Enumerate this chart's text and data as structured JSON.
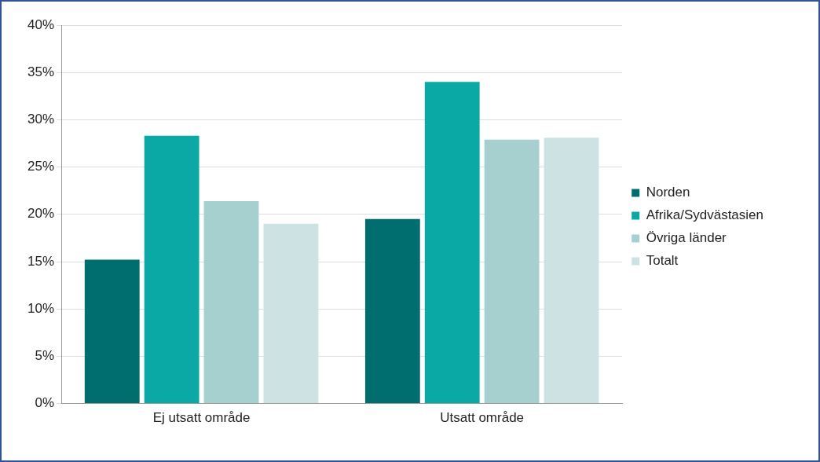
{
  "chart_data": {
    "type": "bar",
    "categories": [
      "Ej utsatt område",
      "Utsatt område"
    ],
    "series": [
      {
        "name": "Norden",
        "color": "#006e6e",
        "values": [
          15.2,
          19.5
        ]
      },
      {
        "name": "Afrika/Sydvästasien",
        "color": "#0aa9a6",
        "values": [
          28.3,
          34.0
        ]
      },
      {
        "name": "Övriga länder",
        "color": "#a6d0d0",
        "values": [
          21.4,
          27.9
        ]
      },
      {
        "name": "Totalt",
        "color": "#cde3e3",
        "values": [
          19.0,
          28.1
        ]
      }
    ],
    "ylim": [
      0,
      40
    ],
    "yticks": [
      {
        "value": 0,
        "label": "0%"
      },
      {
        "value": 5,
        "label": "5%"
      },
      {
        "value": 10,
        "label": "10%"
      },
      {
        "value": 15,
        "label": "15%"
      },
      {
        "value": 20,
        "label": "20%"
      },
      {
        "value": 25,
        "label": "25%"
      },
      {
        "value": 30,
        "label": "30%"
      },
      {
        "value": 35,
        "label": "35%"
      },
      {
        "value": 40,
        "label": "40%"
      }
    ],
    "grid": "y",
    "legend": "right"
  }
}
